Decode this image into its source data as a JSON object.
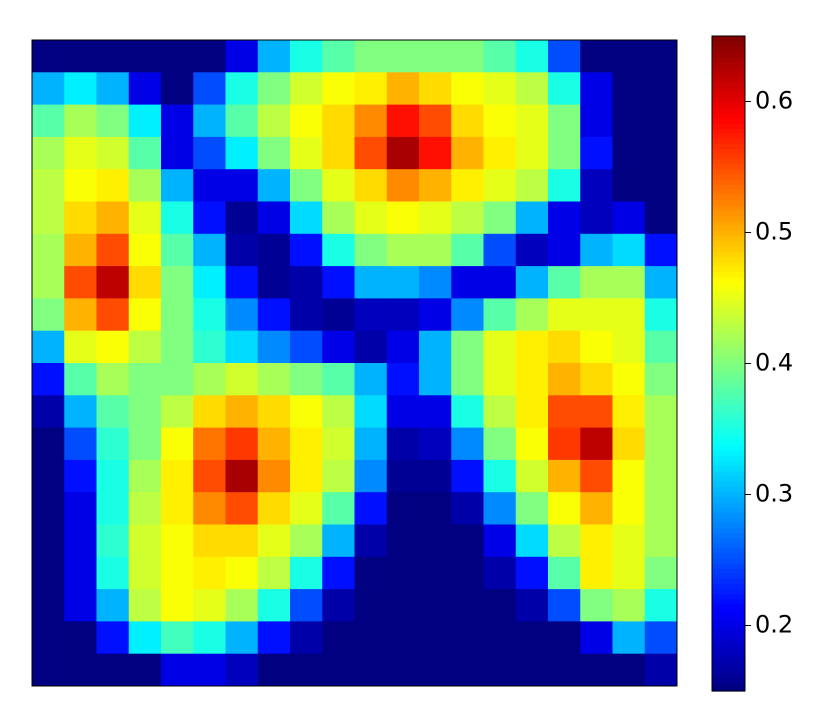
{
  "chart_data": {
    "type": "heatmap",
    "colormap": "jet",
    "values": [
      [
        0.15,
        0.15,
        0.15,
        0.15,
        0.15,
        0.15,
        0.2,
        0.3,
        0.35,
        0.38,
        0.4,
        0.4,
        0.4,
        0.4,
        0.38,
        0.35,
        0.25,
        0.15,
        0.15,
        0.15
      ],
      [
        0.3,
        0.33,
        0.3,
        0.2,
        0.15,
        0.25,
        0.35,
        0.4,
        0.44,
        0.46,
        0.47,
        0.5,
        0.48,
        0.46,
        0.45,
        0.43,
        0.35,
        0.2,
        0.15,
        0.15
      ],
      [
        0.38,
        0.42,
        0.4,
        0.33,
        0.2,
        0.3,
        0.38,
        0.43,
        0.46,
        0.48,
        0.52,
        0.58,
        0.55,
        0.48,
        0.46,
        0.45,
        0.4,
        0.2,
        0.15,
        0.15
      ],
      [
        0.42,
        0.45,
        0.44,
        0.38,
        0.2,
        0.25,
        0.33,
        0.4,
        0.45,
        0.48,
        0.55,
        0.63,
        0.58,
        0.5,
        0.47,
        0.45,
        0.4,
        0.22,
        0.15,
        0.15
      ],
      [
        0.43,
        0.46,
        0.47,
        0.42,
        0.3,
        0.2,
        0.2,
        0.3,
        0.4,
        0.45,
        0.48,
        0.52,
        0.5,
        0.47,
        0.45,
        0.43,
        0.35,
        0.18,
        0.15,
        0.15
      ],
      [
        0.43,
        0.48,
        0.5,
        0.45,
        0.35,
        0.22,
        0.16,
        0.2,
        0.32,
        0.42,
        0.45,
        0.46,
        0.45,
        0.43,
        0.4,
        0.3,
        0.2,
        0.18,
        0.2,
        0.15
      ],
      [
        0.42,
        0.5,
        0.55,
        0.46,
        0.38,
        0.3,
        0.17,
        0.16,
        0.22,
        0.35,
        0.4,
        0.42,
        0.42,
        0.38,
        0.25,
        0.18,
        0.2,
        0.3,
        0.32,
        0.22
      ],
      [
        0.42,
        0.55,
        0.62,
        0.48,
        0.4,
        0.33,
        0.22,
        0.16,
        0.17,
        0.22,
        0.3,
        0.3,
        0.28,
        0.2,
        0.2,
        0.3,
        0.38,
        0.42,
        0.42,
        0.3
      ],
      [
        0.4,
        0.5,
        0.55,
        0.46,
        0.4,
        0.35,
        0.28,
        0.22,
        0.17,
        0.16,
        0.18,
        0.18,
        0.2,
        0.28,
        0.38,
        0.42,
        0.45,
        0.45,
        0.45,
        0.35
      ],
      [
        0.3,
        0.45,
        0.46,
        0.43,
        0.4,
        0.36,
        0.32,
        0.28,
        0.25,
        0.2,
        0.17,
        0.2,
        0.3,
        0.4,
        0.45,
        0.47,
        0.48,
        0.46,
        0.45,
        0.38
      ],
      [
        0.22,
        0.38,
        0.42,
        0.4,
        0.4,
        0.42,
        0.44,
        0.42,
        0.4,
        0.38,
        0.3,
        0.22,
        0.3,
        0.4,
        0.45,
        0.47,
        0.5,
        0.48,
        0.46,
        0.4
      ],
      [
        0.17,
        0.3,
        0.38,
        0.4,
        0.43,
        0.48,
        0.5,
        0.48,
        0.46,
        0.43,
        0.32,
        0.2,
        0.2,
        0.35,
        0.43,
        0.47,
        0.55,
        0.55,
        0.47,
        0.42
      ],
      [
        0.15,
        0.25,
        0.36,
        0.4,
        0.46,
        0.53,
        0.56,
        0.5,
        0.47,
        0.44,
        0.3,
        0.17,
        0.18,
        0.28,
        0.4,
        0.46,
        0.56,
        0.62,
        0.48,
        0.42
      ],
      [
        0.15,
        0.22,
        0.35,
        0.42,
        0.47,
        0.55,
        0.63,
        0.52,
        0.47,
        0.43,
        0.28,
        0.16,
        0.16,
        0.22,
        0.35,
        0.44,
        0.5,
        0.55,
        0.46,
        0.42
      ],
      [
        0.15,
        0.2,
        0.35,
        0.43,
        0.47,
        0.52,
        0.55,
        0.48,
        0.45,
        0.38,
        0.22,
        0.15,
        0.15,
        0.17,
        0.28,
        0.4,
        0.46,
        0.5,
        0.46,
        0.42
      ],
      [
        0.15,
        0.2,
        0.36,
        0.44,
        0.46,
        0.48,
        0.48,
        0.45,
        0.42,
        0.3,
        0.17,
        0.15,
        0.15,
        0.15,
        0.2,
        0.32,
        0.43,
        0.47,
        0.45,
        0.42
      ],
      [
        0.15,
        0.2,
        0.35,
        0.44,
        0.46,
        0.47,
        0.46,
        0.43,
        0.35,
        0.22,
        0.15,
        0.15,
        0.15,
        0.15,
        0.17,
        0.22,
        0.38,
        0.47,
        0.45,
        0.4
      ],
      [
        0.15,
        0.2,
        0.3,
        0.43,
        0.46,
        0.45,
        0.42,
        0.35,
        0.25,
        0.17,
        0.15,
        0.15,
        0.15,
        0.15,
        0.15,
        0.17,
        0.25,
        0.4,
        0.42,
        0.35
      ],
      [
        0.15,
        0.15,
        0.22,
        0.33,
        0.37,
        0.35,
        0.3,
        0.22,
        0.17,
        0.15,
        0.15,
        0.15,
        0.15,
        0.15,
        0.15,
        0.15,
        0.15,
        0.2,
        0.3,
        0.25
      ],
      [
        0.15,
        0.15,
        0.15,
        0.15,
        0.2,
        0.2,
        0.18,
        0.15,
        0.15,
        0.15,
        0.15,
        0.15,
        0.15,
        0.15,
        0.15,
        0.15,
        0.15,
        0.15,
        0.15,
        0.17
      ]
    ],
    "colorbar": {
      "lim": [
        0.15,
        0.65
      ],
      "ticks": [
        0.2,
        0.3,
        0.4,
        0.5,
        0.6
      ]
    }
  }
}
